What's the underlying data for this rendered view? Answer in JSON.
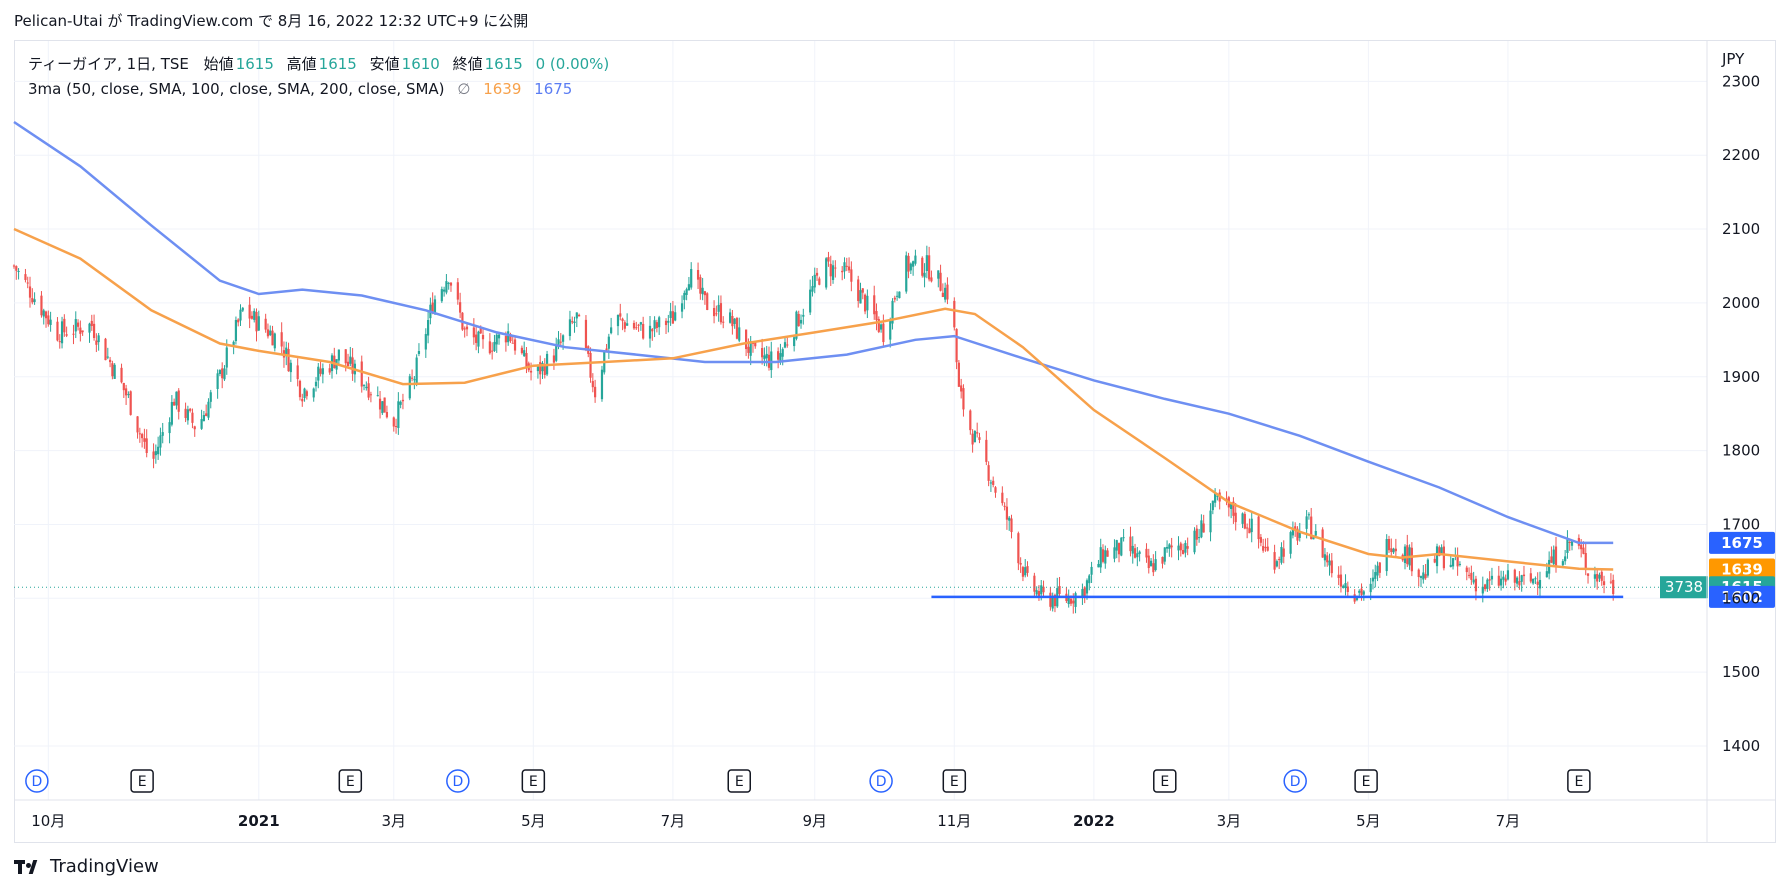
{
  "header": {
    "text": "Pelican-Utai が TradingView.com で 8月 16, 2022 12:32 UTC+9 に公開"
  },
  "legend": {
    "symbol": "ティーガイア, 1日, TSE",
    "open_label": "始値",
    "open": "1615",
    "high_label": "高値",
    "high": "1615",
    "low_label": "安値",
    "low": "1610",
    "close_label": "終値",
    "close": "1615",
    "change": "0 (0.00%)",
    "indicator": "3ma (50, close, SMA, 100, close, SMA, 200, close, SMA)",
    "na_symbol": "∅",
    "ma100_value": "1639",
    "ma200_value": "1675"
  },
  "footer": {
    "brand": "TradingView"
  },
  "colors": {
    "up": "#26a69a",
    "down": "#ef5350",
    "ma100": "#f7a14b",
    "ma200": "#6e8ff2",
    "support": "#2962ff"
  },
  "chart_data": {
    "type": "line",
    "currency": "JPY",
    "y_ticks": [
      1400,
      1500,
      1600,
      1700,
      1800,
      1900,
      2000,
      2100,
      2200,
      2300
    ],
    "ylim": [
      1330,
      2330
    ],
    "x_labels": [
      {
        "label": "10月",
        "date": "2020-10-01",
        "bold": false
      },
      {
        "label": "2021",
        "date": "2021-01-01",
        "bold": true
      },
      {
        "label": "3月",
        "date": "2021-03-01",
        "bold": false
      },
      {
        "label": "5月",
        "date": "2021-05-01",
        "bold": false
      },
      {
        "label": "7月",
        "date": "2021-07-01",
        "bold": false
      },
      {
        "label": "9月",
        "date": "2021-09-01",
        "bold": false
      },
      {
        "label": "11月",
        "date": "2021-11-01",
        "bold": false
      },
      {
        "label": "2022",
        "date": "2022-01-01",
        "bold": true
      },
      {
        "label": "3月",
        "date": "2022-03-01",
        "bold": false
      },
      {
        "label": "5月",
        "date": "2022-05-01",
        "bold": false
      },
      {
        "label": "7月",
        "date": "2022-07-01",
        "bold": false
      }
    ],
    "price_path": [
      [
        "2020-09-16",
        2050
      ],
      [
        "2020-10-05",
        1960
      ],
      [
        "2020-10-20",
        1970
      ],
      [
        "2020-11-05",
        1870
      ],
      [
        "2020-11-15",
        1780
      ],
      [
        "2020-11-25",
        1870
      ],
      [
        "2020-12-05",
        1830
      ],
      [
        "2020-12-15",
        1900
      ],
      [
        "2020-12-25",
        1990
      ],
      [
        "2021-01-10",
        1950
      ],
      [
        "2021-01-20",
        1880
      ],
      [
        "2021-02-05",
        1930
      ],
      [
        "2021-02-20",
        1880
      ],
      [
        "2021-03-01",
        1840
      ],
      [
        "2021-03-10",
        1900
      ],
      [
        "2021-03-18",
        2000
      ],
      [
        "2021-03-25",
        2040
      ],
      [
        "2021-04-01",
        1960
      ],
      [
        "2021-04-10",
        1940
      ],
      [
        "2021-04-20",
        1960
      ],
      [
        "2021-05-01",
        1900
      ],
      [
        "2021-05-10",
        1930
      ],
      [
        "2021-05-20",
        1980
      ],
      [
        "2021-05-28",
        1880
      ],
      [
        "2021-06-05",
        1980
      ],
      [
        "2021-06-20",
        1960
      ],
      [
        "2021-07-01",
        1980
      ],
      [
        "2021-07-08",
        2040
      ],
      [
        "2021-07-15",
        2000
      ],
      [
        "2021-07-25",
        1980
      ],
      [
        "2021-08-05",
        1930
      ],
      [
        "2021-08-15",
        1920
      ],
      [
        "2021-08-25",
        1980
      ],
      [
        "2021-09-05",
        2050
      ],
      [
        "2021-09-15",
        2040
      ],
      [
        "2021-09-25",
        1990
      ],
      [
        "2021-10-01",
        1960
      ],
      [
        "2021-10-10",
        2050
      ],
      [
        "2021-10-20",
        2050
      ],
      [
        "2021-10-30",
        2010
      ],
      [
        "2021-11-01",
        1960
      ],
      [
        "2021-11-03",
        1880
      ],
      [
        "2021-11-08",
        1830
      ],
      [
        "2021-11-15",
        1780
      ],
      [
        "2021-11-25",
        1700
      ],
      [
        "2021-12-03",
        1620
      ],
      [
        "2021-12-10",
        1600
      ],
      [
        "2021-12-20",
        1600
      ],
      [
        "2021-12-27",
        1610
      ],
      [
        "2022-01-05",
        1660
      ],
      [
        "2022-01-15",
        1670
      ],
      [
        "2022-01-25",
        1640
      ],
      [
        "2022-02-05",
        1670
      ],
      [
        "2022-02-15",
        1680
      ],
      [
        "2022-02-22",
        1730
      ],
      [
        "2022-03-01",
        1720
      ],
      [
        "2022-03-10",
        1700
      ],
      [
        "2022-03-20",
        1650
      ],
      [
        "2022-03-28",
        1680
      ],
      [
        "2022-04-05",
        1700
      ],
      [
        "2022-04-15",
        1640
      ],
      [
        "2022-04-25",
        1610
      ],
      [
        "2022-05-02",
        1610
      ],
      [
        "2022-05-10",
        1680
      ],
      [
        "2022-05-18",
        1660
      ],
      [
        "2022-05-25",
        1630
      ],
      [
        "2022-06-01",
        1660
      ],
      [
        "2022-06-10",
        1640
      ],
      [
        "2022-06-20",
        1615
      ],
      [
        "2022-06-30",
        1625
      ],
      [
        "2022-07-10",
        1620
      ],
      [
        "2022-07-20",
        1650
      ],
      [
        "2022-07-30",
        1680
      ],
      [
        "2022-08-05",
        1640
      ],
      [
        "2022-08-16",
        1615
      ]
    ],
    "ma100": [
      [
        "2020-09-16",
        2100
      ],
      [
        "2020-10-15",
        2060
      ],
      [
        "2020-11-15",
        1990
      ],
      [
        "2020-12-15",
        1945
      ],
      [
        "2021-01-01",
        1935
      ],
      [
        "2021-02-01",
        1920
      ],
      [
        "2021-03-05",
        1890
      ],
      [
        "2021-04-01",
        1892
      ],
      [
        "2021-05-01",
        1915
      ],
      [
        "2021-06-01",
        1920
      ],
      [
        "2021-07-01",
        1925
      ],
      [
        "2021-08-01",
        1945
      ],
      [
        "2021-09-01",
        1960
      ],
      [
        "2021-10-01",
        1975
      ],
      [
        "2021-10-28",
        1992
      ],
      [
        "2021-11-10",
        1985
      ],
      [
        "2021-12-01",
        1940
      ],
      [
        "2022-01-01",
        1855
      ],
      [
        "2022-02-01",
        1790
      ],
      [
        "2022-03-01",
        1730
      ],
      [
        "2022-04-01",
        1690
      ],
      [
        "2022-05-01",
        1660
      ],
      [
        "2022-05-15",
        1655
      ],
      [
        "2022-06-01",
        1660
      ],
      [
        "2022-07-01",
        1650
      ],
      [
        "2022-08-01",
        1640
      ],
      [
        "2022-08-16",
        1639
      ]
    ],
    "ma200": [
      [
        "2020-09-16",
        2245
      ],
      [
        "2020-10-15",
        2185
      ],
      [
        "2020-11-15",
        2105
      ],
      [
        "2020-12-15",
        2030
      ],
      [
        "2021-01-01",
        2012
      ],
      [
        "2021-01-20",
        2018
      ],
      [
        "2021-02-15",
        2010
      ],
      [
        "2021-03-15",
        1990
      ],
      [
        "2021-04-15",
        1960
      ],
      [
        "2021-05-15",
        1940
      ],
      [
        "2021-06-15",
        1930
      ],
      [
        "2021-07-15",
        1920
      ],
      [
        "2021-08-15",
        1920
      ],
      [
        "2021-09-15",
        1930
      ],
      [
        "2021-10-15",
        1950
      ],
      [
        "2021-11-01",
        1955
      ],
      [
        "2021-12-01",
        1925
      ],
      [
        "2022-01-01",
        1895
      ],
      [
        "2022-02-01",
        1870
      ],
      [
        "2022-03-01",
        1850
      ],
      [
        "2022-04-01",
        1820
      ],
      [
        "2022-05-01",
        1785
      ],
      [
        "2022-06-01",
        1750
      ],
      [
        "2022-07-01",
        1710
      ],
      [
        "2022-08-01",
        1675
      ],
      [
        "2022-08-16",
        1675
      ]
    ],
    "support": {
      "price": 1602,
      "from": "2021-10-22",
      "to": "2022-08-16"
    },
    "last_price": 1615,
    "volume_badge": "3738",
    "price_badges": [
      {
        "label": "1675",
        "price": 1675,
        "color": "#2962ff"
      },
      {
        "label": "1639",
        "price": 1639,
        "color": "#ff9800"
      },
      {
        "label": "1615",
        "price": 1615,
        "color": "#26a69a"
      },
      {
        "label": "1602",
        "price": 1602,
        "color": "#2962ff"
      }
    ],
    "events": [
      {
        "type": "D",
        "date": "2020-09-26"
      },
      {
        "type": "E",
        "date": "2020-11-11"
      },
      {
        "type": "E",
        "date": "2021-02-10"
      },
      {
        "type": "D",
        "date": "2021-03-29"
      },
      {
        "type": "E",
        "date": "2021-05-01"
      },
      {
        "type": "E",
        "date": "2021-07-30"
      },
      {
        "type": "D",
        "date": "2021-09-30"
      },
      {
        "type": "E",
        "date": "2021-11-01"
      },
      {
        "type": "E",
        "date": "2022-02-01"
      },
      {
        "type": "D",
        "date": "2022-03-30"
      },
      {
        "type": "E",
        "date": "2022-04-30"
      },
      {
        "type": "E",
        "date": "2022-08-01"
      }
    ]
  }
}
